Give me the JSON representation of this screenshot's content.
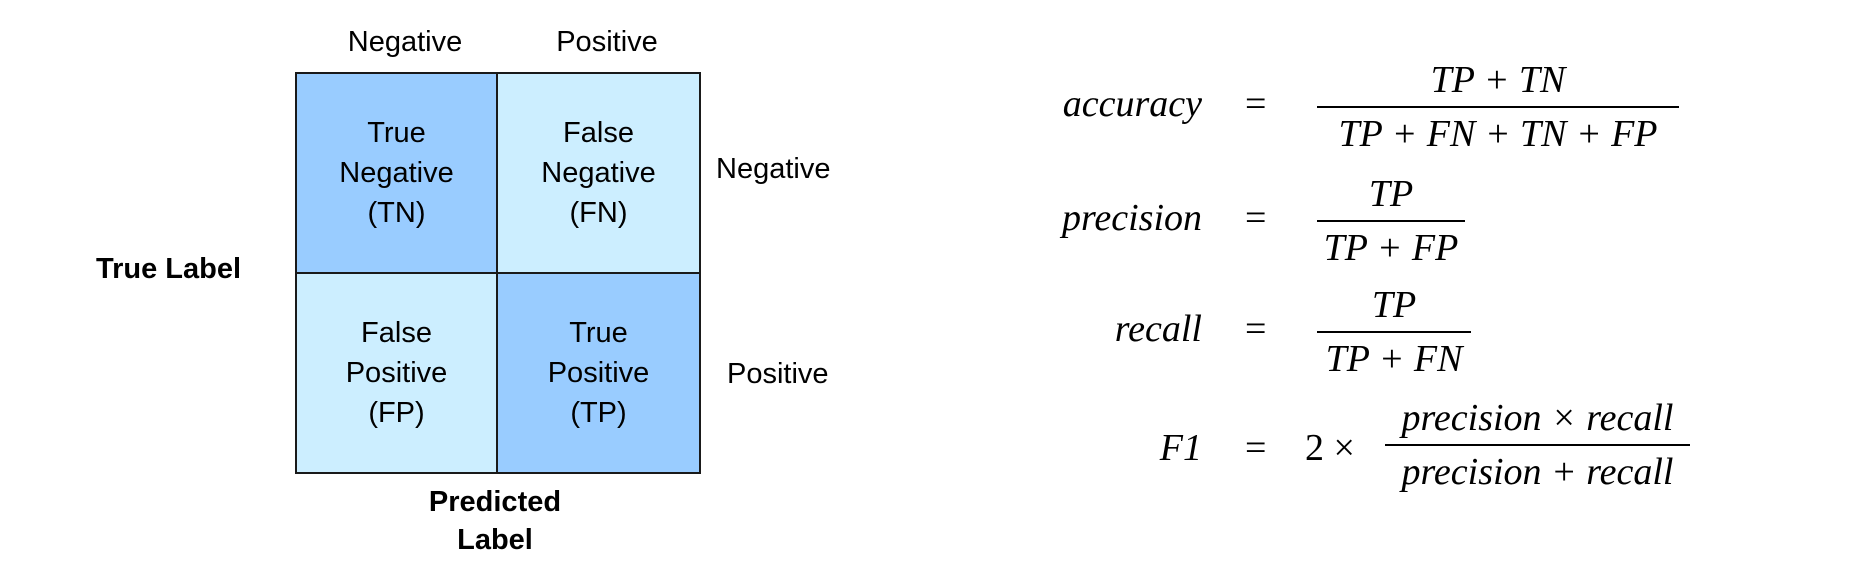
{
  "confusion_matrix": {
    "column_headers": [
      "Negative",
      "Positive"
    ],
    "row_headers": [
      "Negative",
      "Positive"
    ],
    "row_axis_title": "True Label",
    "column_axis_title_line1": "Predicted",
    "column_axis_title_line2": "Label",
    "cells": [
      {
        "line1": "True",
        "line2": "Negative",
        "line3": "(TN)",
        "color": "#99ccff"
      },
      {
        "line1": "False",
        "line2": "Negative",
        "line3": "(FN)",
        "color": "#cceeff"
      },
      {
        "line1": "False",
        "line2": "Positive",
        "line3": "(FP)",
        "color": "#cceeff"
      },
      {
        "line1": "True",
        "line2": "Positive",
        "line3": "(TP)",
        "color": "#99ccff"
      }
    ]
  },
  "formulas": {
    "equals": "=",
    "accuracy": {
      "name": "accuracy",
      "numerator": "TP + TN",
      "denominator": "TP + FN + TN + FP"
    },
    "precision": {
      "name": "precision",
      "numerator": "TP",
      "denominator": "TP + FP"
    },
    "recall": {
      "name": "recall",
      "numerator": "TP",
      "denominator": "TP + FN"
    },
    "f1": {
      "name": "F1",
      "prefix": "2 ×",
      "numerator": "precision × recall",
      "denominator": "precision + recall"
    }
  }
}
